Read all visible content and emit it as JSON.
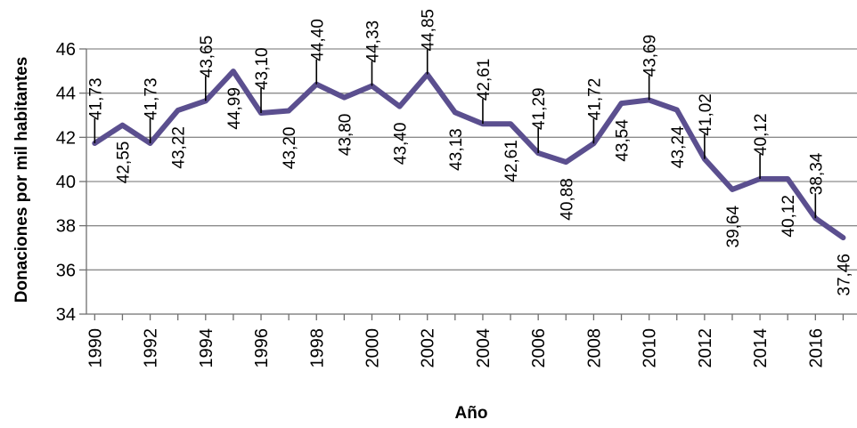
{
  "chart_data": {
    "type": "line",
    "xlabel": "Año",
    "ylabel": "Donaciones  por mil  habitantes",
    "ylim": [
      34,
      46
    ],
    "yticks": [
      "34",
      "36",
      "38",
      "40",
      "42",
      "44",
      "46"
    ],
    "xticks": [
      "1990",
      "1992",
      "1994",
      "1996",
      "1998",
      "2000",
      "2002",
      "2004",
      "2006",
      "2008",
      "2010",
      "2012",
      "2014",
      "2016"
    ],
    "grid": true,
    "legend": "none",
    "series": [
      {
        "color": "#5b4f8f",
        "x": [
          1990,
          1991,
          1992,
          1993,
          1994,
          1995,
          1996,
          1997,
          1998,
          1999,
          2000,
          2001,
          2002,
          2003,
          2004,
          2005,
          2006,
          2007,
          2008,
          2009,
          2010,
          2011,
          2012,
          2013,
          2014,
          2015,
          2016,
          2017
        ],
        "values": [
          41.73,
          42.55,
          41.73,
          43.22,
          43.65,
          44.99,
          43.1,
          43.2,
          44.4,
          43.8,
          44.33,
          43.4,
          44.85,
          43.13,
          42.61,
          42.61,
          41.29,
          40.88,
          41.72,
          43.54,
          43.69,
          43.24,
          41.02,
          39.64,
          40.12,
          40.12,
          38.34,
          37.46
        ],
        "labels": [
          "41,73",
          "42,55",
          "41,73",
          "43,22",
          "43,65",
          "44,99",
          "43,10",
          "43,20",
          "44,40",
          "43,80",
          "44,33",
          "43,40",
          "44,85",
          "43,13",
          "42,61",
          "42,61",
          "41,29",
          "40,88",
          "41,72",
          "43,54",
          "43,69",
          "43,24",
          "41,02",
          "39,64",
          "40,12",
          "40,12",
          "38,34",
          "37,46"
        ]
      }
    ]
  }
}
